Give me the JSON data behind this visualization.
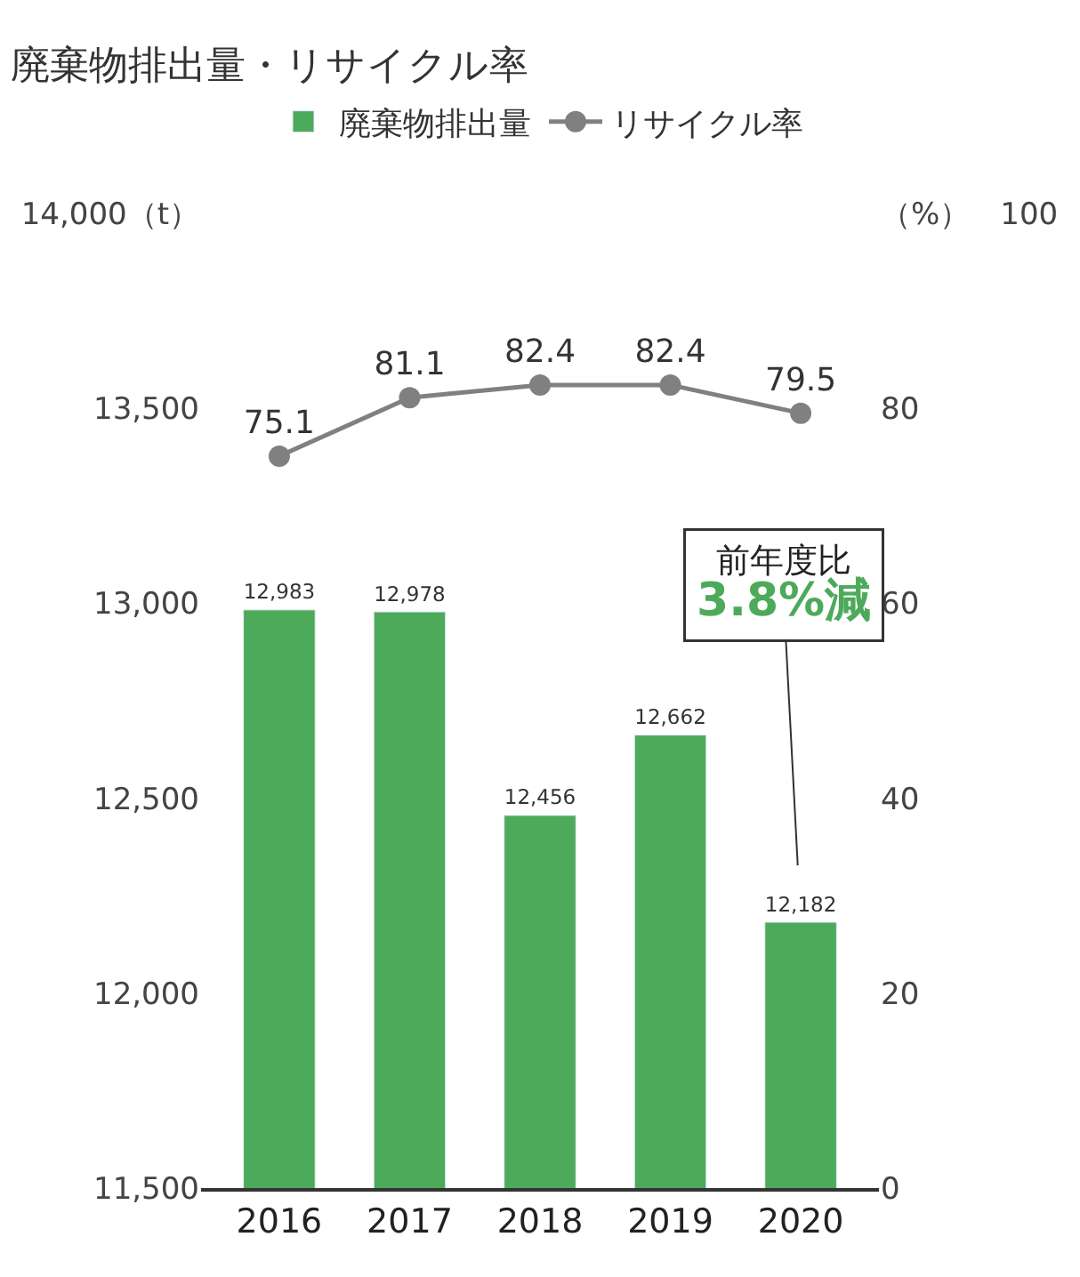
{
  "chart_data": {
    "type": "bar",
    "title": "廃棄物排出量・リサイクル率",
    "categories": [
      "2016",
      "2017",
      "2018",
      "2019",
      "2020"
    ],
    "series": [
      {
        "name": "廃棄物排出量",
        "color": "#4caa5a",
        "values": [
          12983,
          12978,
          12456,
          12662,
          12182
        ],
        "value_labels": [
          "12,983",
          "12,978",
          "12,456",
          "12,662",
          "12,182"
        ]
      },
      {
        "name": "リサイクル率",
        "type": "line",
        "axis": "y2",
        "color": "#808080",
        "marker": "circle",
        "values": [
          75.1,
          81.1,
          82.4,
          82.4,
          79.5
        ]
      }
    ],
    "ylim": [
      11500,
      14000
    ],
    "yticks": [
      {
        "value": 11500,
        "label": "11,500"
      },
      {
        "value": 12000,
        "label": "12,000"
      },
      {
        "value": 12500,
        "label": "12,500"
      },
      {
        "value": 13000,
        "label": "13,000"
      },
      {
        "value": 13500,
        "label": "13,500"
      },
      {
        "value": 14000,
        "label": "14,000（t）"
      }
    ],
    "y2lim": [
      0,
      100
    ],
    "y2ticks": [
      0,
      20,
      40,
      60,
      80,
      {
        "value": 100,
        "label": "（%）　100"
      }
    ],
    "data_labels": true,
    "legend": "top",
    "annotations": [
      {
        "text": "前年度比\n3.8%減",
        "x": "2020",
        "y": 12182
      }
    ]
  }
}
